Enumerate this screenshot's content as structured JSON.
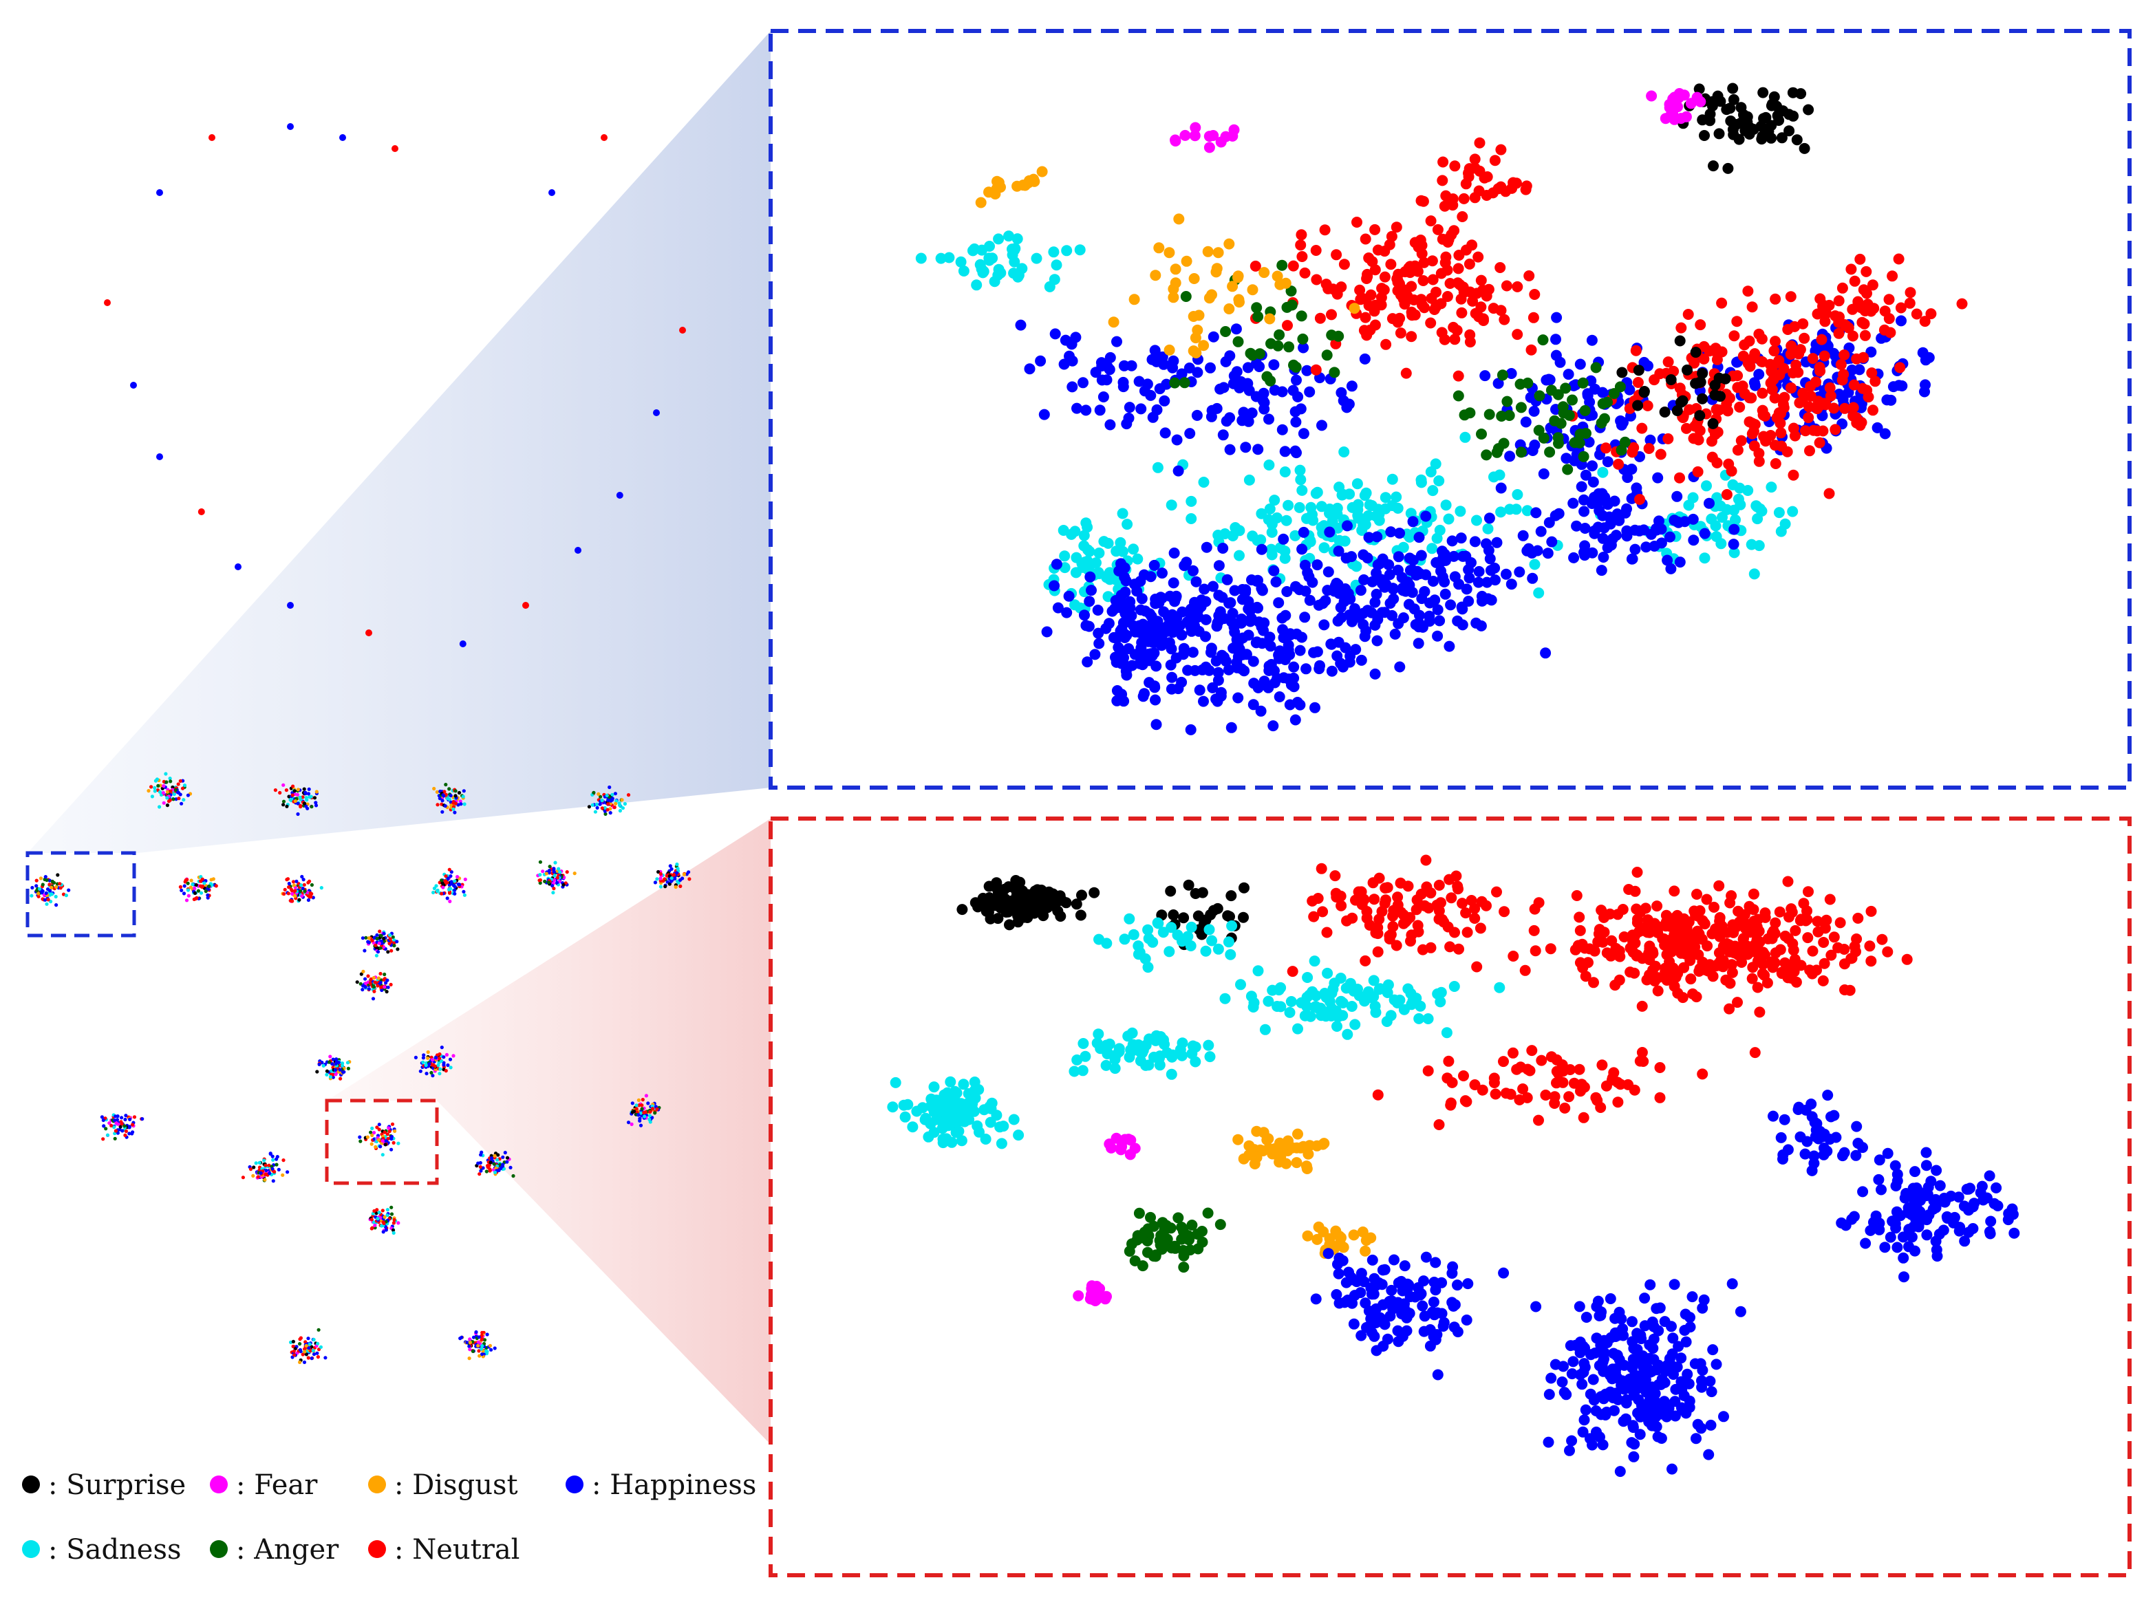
{
  "chart_data": {
    "type": "scatter",
    "description_kind": "t-SNE feature embedding at facial landmarks with two zoomed panels",
    "legend_placement": "bottom-left",
    "grid": false,
    "legend": [
      {
        "label": ": Surprise",
        "color": "#000000"
      },
      {
        "label": ": Fear",
        "color": "#ff00ff"
      },
      {
        "label": ": Disgust",
        "color": "#ffa500"
      },
      {
        "label": ": Happiness",
        "color": "#0000ff"
      },
      {
        "label": ": Sadness",
        "color": "#00e5ee"
      },
      {
        "label": ": Anger",
        "color": "#006400"
      },
      {
        "label": ": Neutral",
        "color": "#ff0000"
      }
    ],
    "landmarks": [
      {
        "x": 0.2,
        "y": 0.2,
        "c": "b"
      },
      {
        "x": 0.3,
        "y": 0.1,
        "c": "r"
      },
      {
        "x": 0.45,
        "y": 0.08,
        "c": "b"
      },
      {
        "x": 0.55,
        "y": 0.1,
        "c": "b"
      },
      {
        "x": 0.65,
        "y": 0.12,
        "c": "r"
      },
      {
        "x": 0.1,
        "y": 0.4,
        "c": "r"
      },
      {
        "x": 0.15,
        "y": 0.55,
        "c": "b"
      },
      {
        "x": 0.2,
        "y": 0.68,
        "c": "b"
      },
      {
        "x": 0.28,
        "y": 0.78,
        "c": "r"
      },
      {
        "x": 0.35,
        "y": 0.88,
        "c": "b"
      },
      {
        "x": 0.45,
        "y": 0.95,
        "c": "b"
      },
      {
        "x": 0.6,
        "y": 1.0,
        "c": "r"
      },
      {
        "x": 0.78,
        "y": 1.02,
        "c": "b"
      },
      {
        "x": 0.9,
        "y": 0.95,
        "c": "r"
      },
      {
        "x": 1.0,
        "y": 0.85,
        "c": "b"
      },
      {
        "x": 1.08,
        "y": 0.75,
        "c": "b"
      },
      {
        "x": 1.15,
        "y": 0.6,
        "c": "b"
      },
      {
        "x": 1.2,
        "y": 0.45,
        "c": "r"
      },
      {
        "x": 0.95,
        "y": 0.2,
        "c": "b"
      },
      {
        "x": 1.05,
        "y": 0.1,
        "c": "r"
      }
    ]
  }
}
